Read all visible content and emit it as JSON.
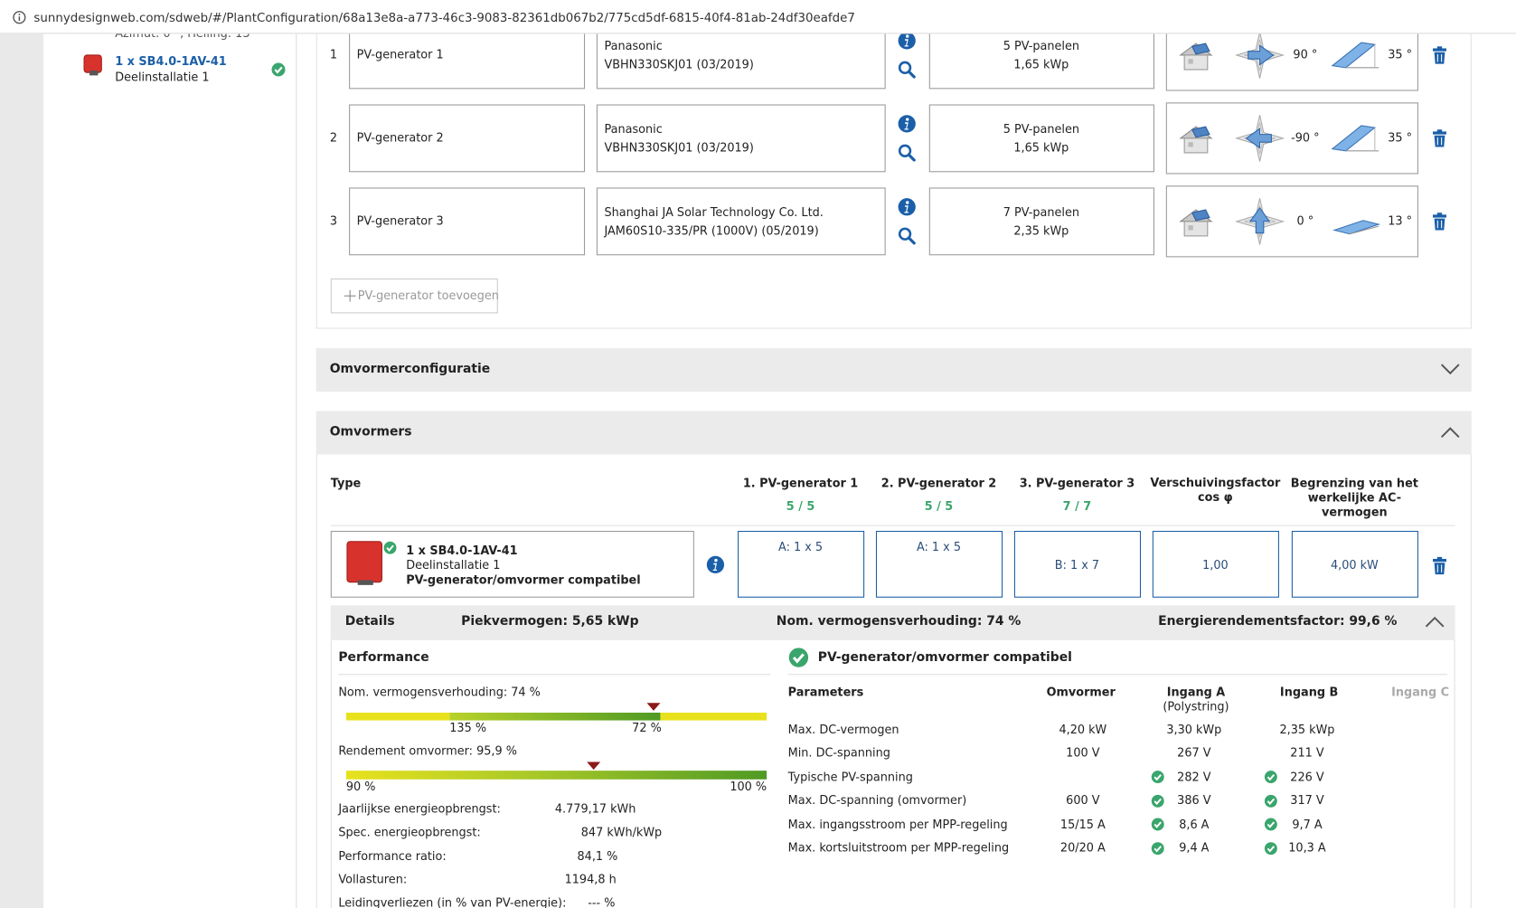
{
  "browser": {
    "url": "sunnydesignweb.com/sdweb/#/PlantConfiguration/68a13e8a-a773-46c3-9083-82361db067b2/775cd5df-6815-40f4-81ab-24df30eafde7"
  },
  "sidebar": {
    "cut_text": "Azimut: 0 °, Helling: 13",
    "inverter": "1 x SB4.0-1AV-41",
    "subsystem": "Deelinstallatie 1"
  },
  "generators": [
    {
      "index": "1",
      "name": "PV-generator 1",
      "manufacturer": "Panasonic",
      "module": "VBHN330SKJ01 (03/2019)",
      "panels": "5 PV-panelen",
      "power": "1,65 kWp",
      "azimuth": "90 °",
      "tilt": "35 °"
    },
    {
      "index": "2",
      "name": "PV-generator 2",
      "manufacturer": "Panasonic",
      "module": "VBHN330SKJ01 (03/2019)",
      "panels": "5 PV-panelen",
      "power": "1,65 kWp",
      "azimuth": "-90 °",
      "tilt": "35 °"
    },
    {
      "index": "3",
      "name": "PV-generator 3",
      "manufacturer": "Shanghai JA Solar Technology Co. Ltd.",
      "module": "JAM60S10-335/PR (1000V) (05/2019)",
      "panels": "7 PV-panelen",
      "power": "2,35 kWp",
      "azimuth": "0 °",
      "tilt": "13 °"
    }
  ],
  "add_generator": "PV-generator toevoegen",
  "sections": {
    "inverter_config": "Omvormerconfiguratie",
    "inverters": "Omvormers"
  },
  "inverter_table": {
    "type_header": "Type",
    "columns": [
      {
        "header": "1. PV-generator 1",
        "count": "5 / 5",
        "value": "A: 1 x 5"
      },
      {
        "header": "2. PV-generator 2",
        "count": "5 / 5",
        "value": "A: 1 x 5"
      },
      {
        "header": "3. PV-generator 3",
        "count": "7 / 7",
        "value": "B: 1 x 7"
      },
      {
        "header": "Verschuivingsfactor cos φ",
        "count": null,
        "value": "1,00"
      },
      {
        "header": "Begrenzing van het werkelijke AC-vermogen",
        "count": null,
        "value": "4,00 kW"
      }
    ],
    "inverter": "1 x SB4.0-1AV-41",
    "subsystem": "Deelinstallatie 1",
    "status": "PV-generator/omvormer compatibel"
  },
  "details": {
    "title": "Details",
    "peak": "Piekvermogen: 5,65 kWp",
    "ratio": "Nom. vermogensverhouding: 74 %",
    "efficiency": "Energierendementsfactor: 99,6 %"
  },
  "performance": {
    "title": "Performance",
    "ratio_label": "Nom. vermogensverhouding: 74 %",
    "ratio_low": "135 %",
    "ratio_high": "72 %",
    "efficiency_label": "Rendement omvormer: 95,9 %",
    "efficiency_min": "90 %",
    "efficiency_max": "100 %",
    "stats": [
      {
        "label": "Jaarlijkse energieopbrengst:",
        "value": "4.779,17 kWh"
      },
      {
        "label": "Spec. energieopbrengst:",
        "value": "847 kWh/kWp"
      },
      {
        "label": "Performance ratio:",
        "value": "84,1 %"
      },
      {
        "label": "Vollasturen:",
        "value": "1194,8 h"
      },
      {
        "label": "Leidingverliezen (in % van PV-energie):",
        "value": "--- %"
      }
    ]
  },
  "compatibility": {
    "title": "PV-generator/omvormer compatibel",
    "headers": {
      "parameters": "Parameters",
      "inverter": "Omvormer",
      "input_a": "Ingang A",
      "input_a_sub": "(Polystring)",
      "input_b": "Ingang B",
      "input_c": "Ingang C"
    },
    "rows": [
      {
        "name": "Max. DC-vermogen",
        "inverter": "4,20 kW",
        "input_a": "3,30 kWp",
        "input_b": "2,35 kWp",
        "checked": false
      },
      {
        "name": "Min. DC-spanning",
        "inverter": "100 V",
        "input_a": "267 V",
        "input_b": "211 V",
        "checked": false
      },
      {
        "name": "Typische PV-spanning",
        "inverter": null,
        "input_a": "282 V",
        "input_b": "226 V",
        "checked": true
      },
      {
        "name": "Max. DC-spanning (omvormer)",
        "inverter": "600 V",
        "input_a": "386 V",
        "input_b": "317 V",
        "checked": true
      },
      {
        "name": "Max. ingangsstroom per MPP-regeling",
        "inverter": "15/15 A",
        "input_a": "8,6 A",
        "input_b": "9,7 A",
        "checked": true
      },
      {
        "name": "Max. kortsluitstroom per MPP-regeling",
        "inverter": "20/20 A",
        "input_a": "9,4 A",
        "input_b": "10,3 A",
        "checked": true
      }
    ]
  }
}
